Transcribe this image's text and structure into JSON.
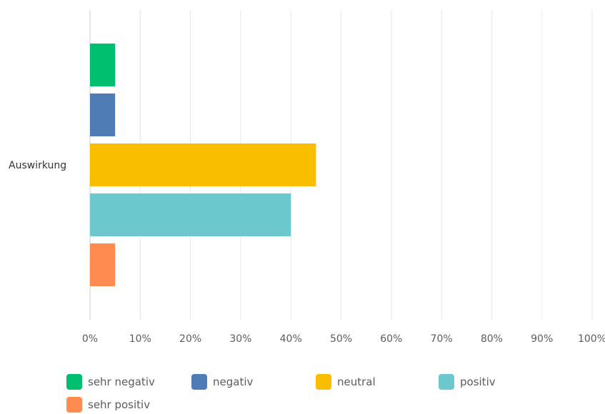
{
  "chart_data": {
    "type": "bar",
    "orientation": "horizontal",
    "categories": [
      "Auswirkung"
    ],
    "series": [
      {
        "name": "sehr negativ",
        "values": [
          5
        ],
        "color": "#00bf6f"
      },
      {
        "name": "negativ",
        "values": [
          5
        ],
        "color": "#507cb6"
      },
      {
        "name": "neutral",
        "values": [
          45
        ],
        "color": "#f9be00"
      },
      {
        "name": "positiv",
        "values": [
          40
        ],
        "color": "#6bc8cd"
      },
      {
        "name": "sehr positiv",
        "values": [
          5
        ],
        "color": "#ff8b4f"
      }
    ],
    "xlim": [
      0,
      100
    ],
    "x_tick_labels": [
      "0%",
      "10%",
      "20%",
      "30%",
      "40%",
      "50%",
      "60%",
      "70%",
      "80%",
      "90%",
      "100%"
    ],
    "grid": true,
    "legend_position": "bottom"
  }
}
